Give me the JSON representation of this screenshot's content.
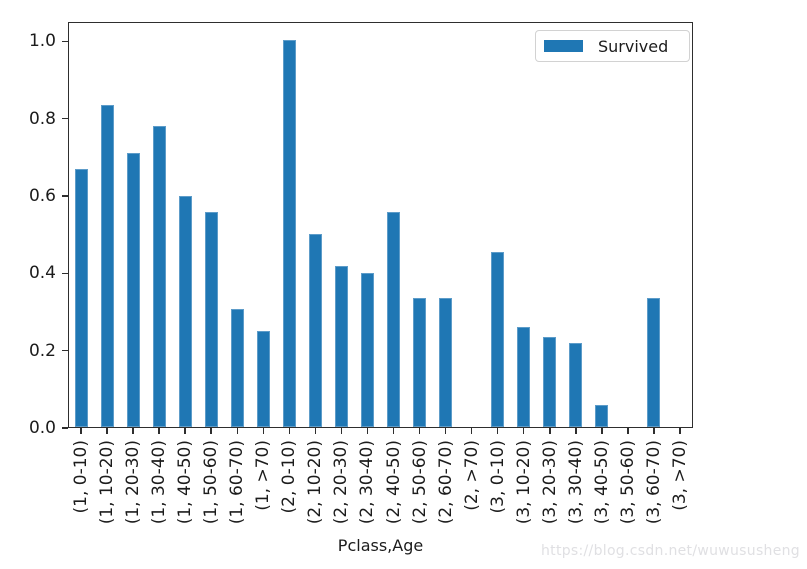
{
  "chart_data": {
    "type": "bar",
    "title": "",
    "xlabel": "Pclass,Age",
    "ylabel": "",
    "legend": {
      "label": "Survived",
      "position": "upper right"
    },
    "bar_color": "#1f77b4",
    "categories": [
      "(1, 0-10)",
      "(1, 10-20)",
      "(1, 20-30)",
      "(1, 30-40)",
      "(1, 40-50)",
      "(1, 50-60)",
      "(1, 60-70)",
      "(1, >70)",
      "(2, 0-10)",
      "(2, 10-20)",
      "(2, 20-30)",
      "(2, 30-40)",
      "(2, 40-50)",
      "(2, 50-60)",
      "(2, 60-70)",
      "(2, >70)",
      "(3, 0-10)",
      "(3, 10-20)",
      "(3, 20-30)",
      "(3, 30-40)",
      "(3, 40-50)",
      "(3, 50-60)",
      "(3, 60-70)",
      "(3, >70)"
    ],
    "values": [
      0.667,
      0.833,
      0.708,
      0.779,
      0.597,
      0.557,
      0.304,
      0.248,
      1.0,
      0.5,
      0.416,
      0.397,
      0.556,
      0.333,
      0.333,
      0.0,
      0.452,
      0.258,
      0.232,
      0.217,
      0.057,
      0.0,
      0.333,
      0.0
    ],
    "ylim": [
      0,
      1.05
    ],
    "yticks": [
      0,
      0.2,
      0.4,
      0.6,
      0.8,
      1.0
    ],
    "ytick_labels": [
      "0.0",
      "0.2",
      "0.4",
      "0.6",
      "0.8",
      "1.0"
    ],
    "x_tick_rotation": 90,
    "grid": false
  },
  "watermark": "https://blog.csdn.net/wuwususheng"
}
